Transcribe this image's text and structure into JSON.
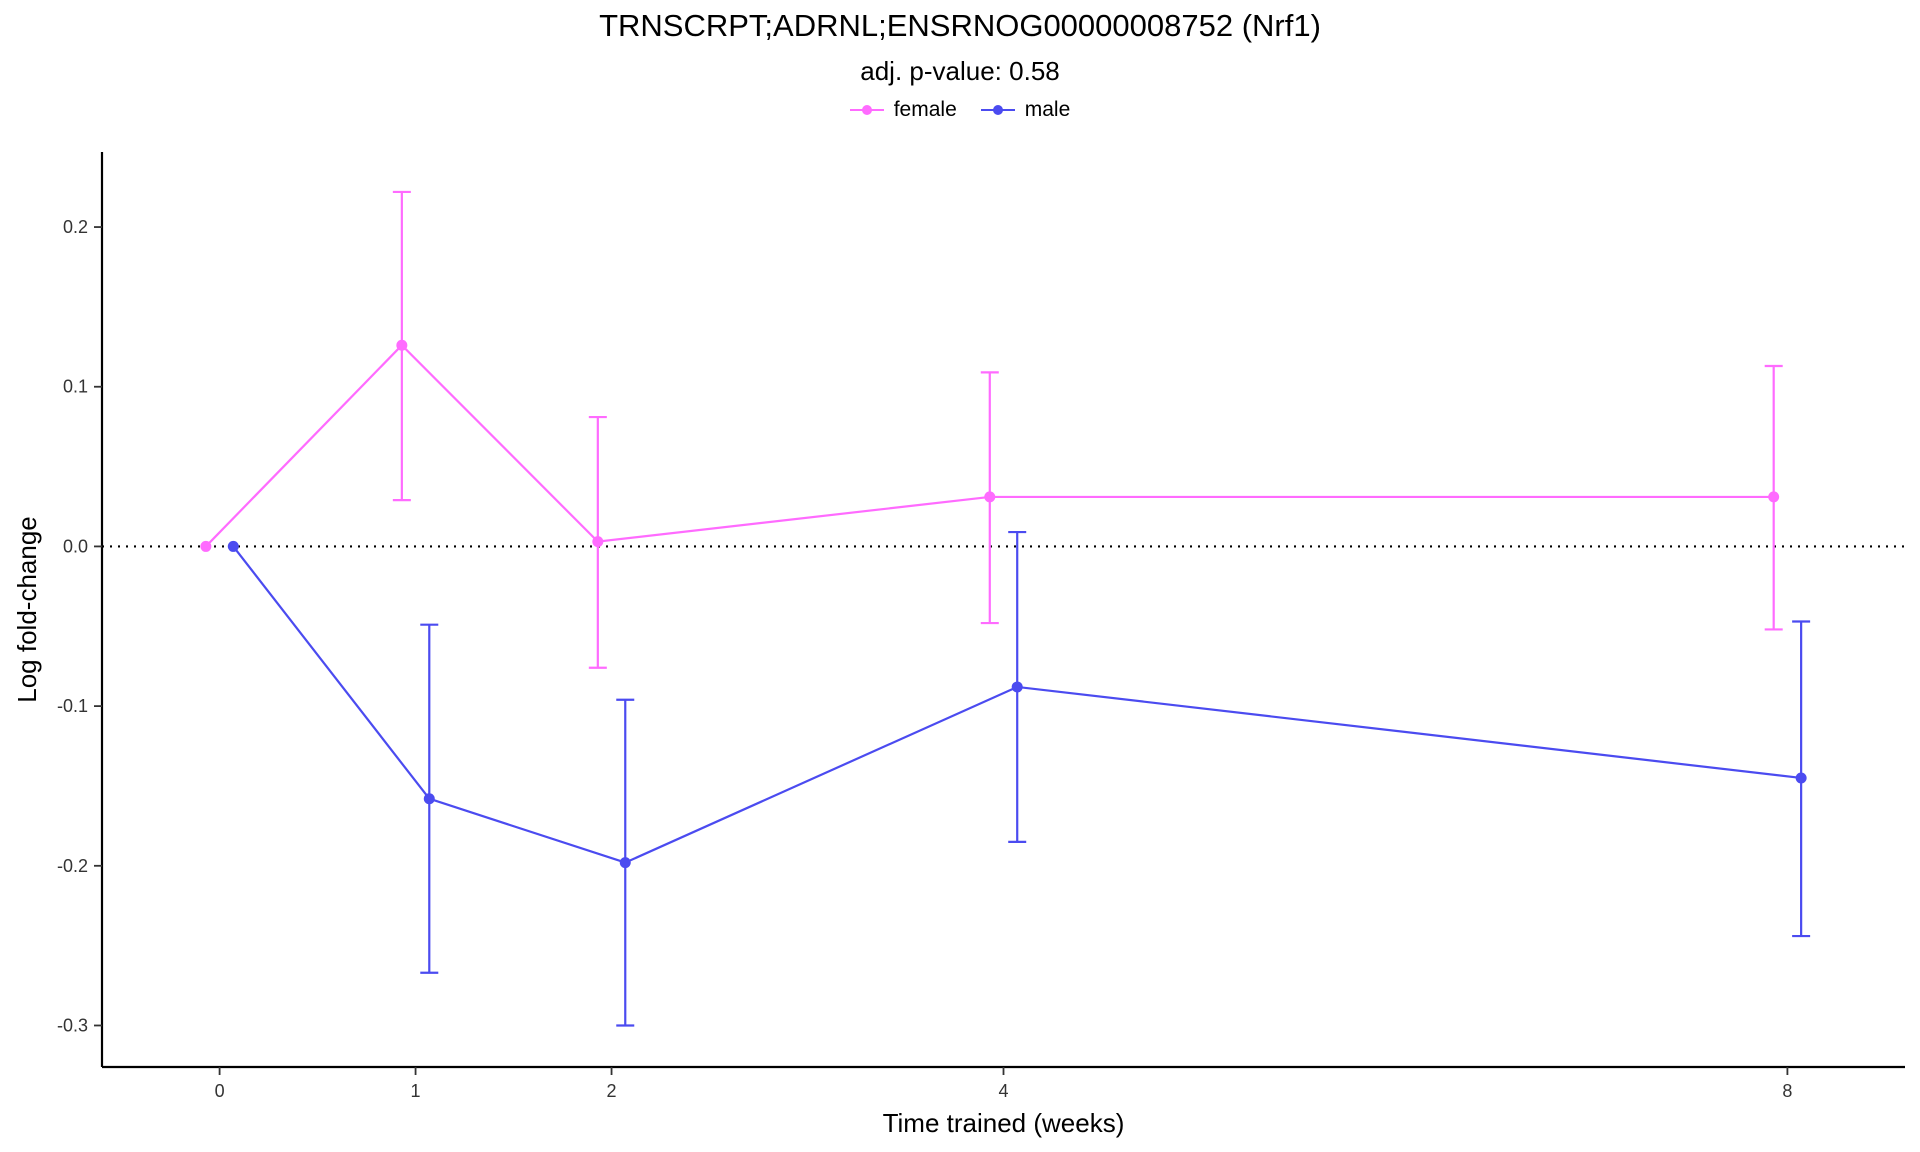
{
  "chart_data": {
    "type": "line",
    "title": "TRNSCRPT;ADRNL;ENSRNOG00000008752 (Nrf1)",
    "subtitle": "adj. p-value: 0.58",
    "xlabel": "Time trained (weeks)",
    "ylabel": "Log fold-change",
    "x_ticks": [
      0,
      1,
      2,
      4,
      8
    ],
    "x_tick_labels": [
      "0",
      "1",
      "2",
      "4",
      "8"
    ],
    "y_ticks": [
      -0.3,
      -0.2,
      -0.1,
      0.0,
      0.1,
      0.2
    ],
    "y_tick_labels": [
      "-0.3",
      "-0.2",
      "-0.1",
      "0.0",
      "0.1",
      "0.2"
    ],
    "xlim": [
      -0.6,
      8.6
    ],
    "ylim": [
      -0.326,
      0.247
    ],
    "reference_line": {
      "y": 0.0,
      "style": "dotted"
    },
    "legend_position": "top",
    "series": [
      {
        "name": "female",
        "color": "#ff6bff",
        "x": [
          0,
          1,
          2,
          4,
          8
        ],
        "y": [
          0.0,
          0.126,
          0.003,
          0.031,
          0.031
        ],
        "err_low": [
          0.0,
          0.029,
          -0.076,
          -0.048,
          -0.052
        ],
        "err_high": [
          0.0,
          0.222,
          0.081,
          0.109,
          0.113
        ]
      },
      {
        "name": "male",
        "color": "#4b4bf0",
        "x": [
          0,
          1,
          2,
          4,
          8
        ],
        "y": [
          0.0,
          -0.158,
          -0.198,
          -0.088,
          -0.145
        ],
        "err_low": [
          0.0,
          -0.267,
          -0.3,
          -0.185,
          -0.244
        ],
        "err_high": [
          0.0,
          -0.049,
          -0.096,
          0.009,
          -0.047
        ]
      }
    ]
  }
}
